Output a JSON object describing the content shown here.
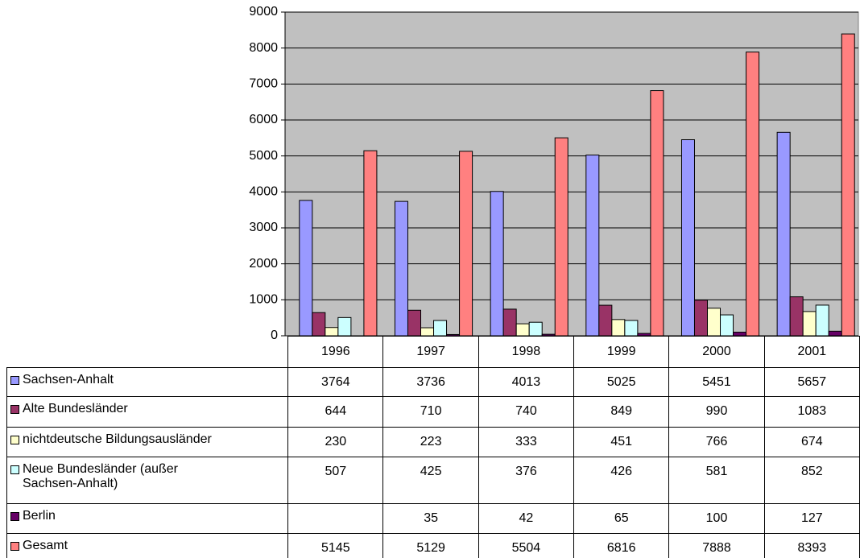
{
  "chart_data": {
    "type": "bar",
    "categories": [
      "1996",
      "1997",
      "1998",
      "1999",
      "2000",
      "2001"
    ],
    "series": [
      {
        "name": "Sachsen-Anhalt",
        "color": "#9999ff",
        "values": [
          3764,
          3736,
          4013,
          5025,
          5451,
          5657
        ]
      },
      {
        "name": "Alte Bundesländer",
        "color": "#993366",
        "values": [
          644,
          710,
          740,
          849,
          990,
          1083
        ]
      },
      {
        "name": "nichtdeutsche Bildungsausländer",
        "color": "#ffffcc",
        "values": [
          230,
          223,
          333,
          451,
          766,
          674
        ]
      },
      {
        "name": "Neue Bundesländer (außer Sachsen-Anhalt)",
        "color": "#ccffff",
        "values": [
          507,
          425,
          376,
          426,
          581,
          852
        ]
      },
      {
        "name": "Berlin",
        "color": "#660066",
        "values": [
          null,
          35,
          42,
          65,
          100,
          127
        ]
      },
      {
        "name": "Gesamt",
        "color": "#ff8080",
        "values": [
          5145,
          5129,
          5504,
          6816,
          7888,
          8393
        ]
      }
    ],
    "ylim": [
      0,
      9000
    ],
    "yticks": [
      0,
      1000,
      2000,
      3000,
      4000,
      5000,
      6000,
      7000,
      8000,
      9000
    ],
    "grid": true,
    "plot_background": "#c0c0c0"
  }
}
